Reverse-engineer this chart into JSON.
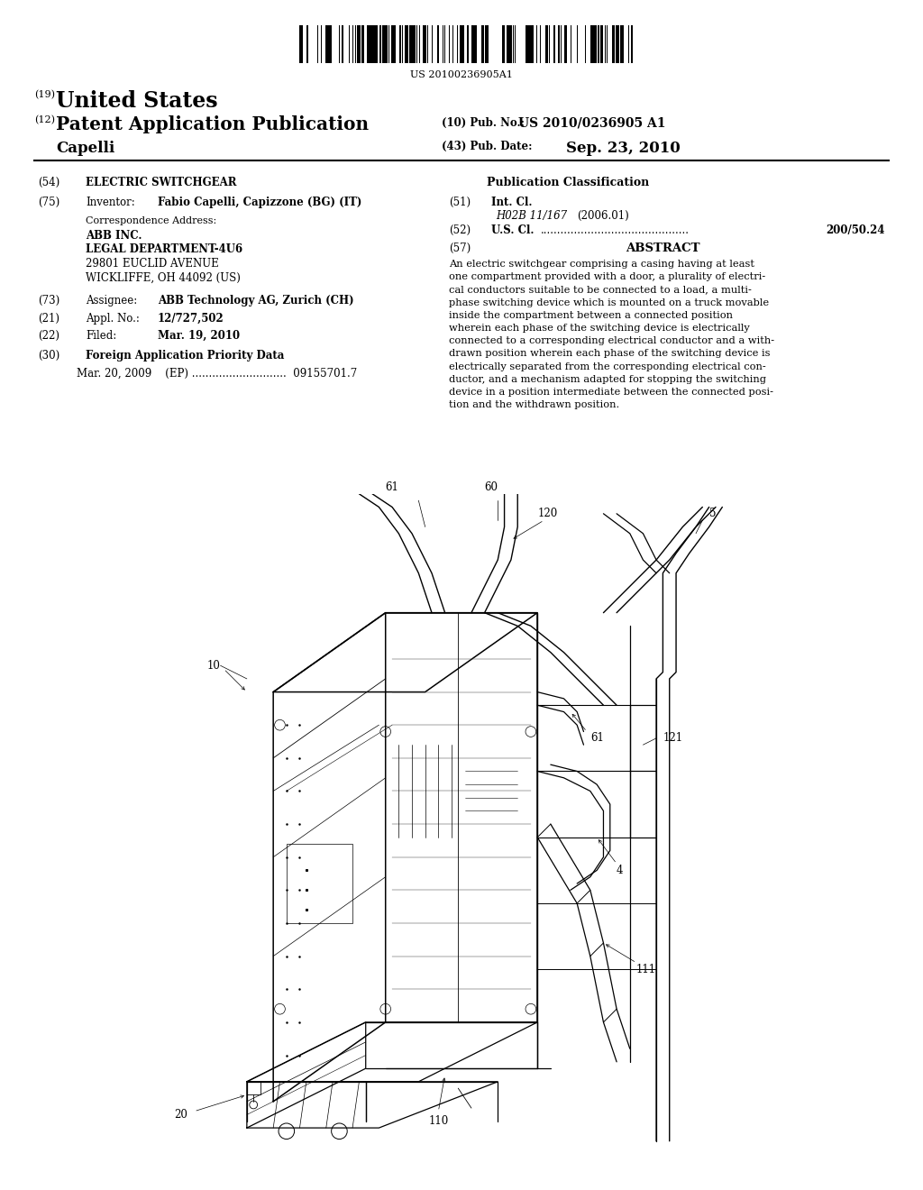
{
  "bg_color": "#ffffff",
  "barcode_text": "US 20100236905A1",
  "title_19_prefix": "(19)",
  "title_19_text": "United States",
  "title_12_prefix": "(12)",
  "title_12_text": "Patent Application Publication",
  "title_10_label": "(10) Pub. No.:",
  "title_10_value": "US 2010/0236905 A1",
  "title_43_label": "(43) Pub. Date:",
  "title_43_value": "Sep. 23, 2010",
  "inventor_name": "Capelli",
  "field54_label": "(54)  ",
  "field54_value": "ELECTRIC SWITCHGEAR",
  "field75_label": "(75)",
  "field75_key": "Inventor:",
  "field75_value": "Fabio Capelli, Capizzone (BG) (IT)",
  "corr_addr_label": "Correspondence Address:",
  "corr_addr_lines": [
    "ABB INC.",
    "LEGAL DEPARTMENT-4U6",
    "29801 EUCLID AVENUE",
    "WICKLIFFE, OH 44092 (US)"
  ],
  "field73_label": "(73)",
  "field73_key": "Assignee:",
  "field73_value": "ABB Technology AG, Zurich (CH)",
  "field21_label": "(21)",
  "field21_key": "Appl. No.:",
  "field21_value": "12/727,502",
  "field22_label": "(22)",
  "field22_key": "Filed:",
  "field22_value": "Mar. 19, 2010",
  "field30_label": "(30)",
  "field30_value": "Foreign Application Priority Data",
  "foreign_data": "Mar. 20, 2009    (EP) ............................  09155701.7",
  "pub_class_header": "Publication Classification",
  "field51_label": "(51)",
  "field51_key": "Int. Cl.",
  "field51_class": "H02B 11/167",
  "field51_year": "(2006.01)",
  "field52_label": "(52)",
  "field52_key": "U.S. Cl.",
  "field52_dots": "............................................",
  "field52_value": "200/50.24",
  "field57_label": "(57)",
  "field57_key": "ABSTRACT",
  "abstract_lines": [
    "An electric switchgear comprising a casing having at least",
    "one compartment provided with a door, a plurality of electri-",
    "cal conductors suitable to be connected to a load, a multi-",
    "phase switching device which is mounted on a truck movable",
    "inside the compartment between a connected position",
    "wherein each phase of the switching device is electrically",
    "connected to a corresponding electrical conductor and a with-",
    "drawn position wherein each phase of the switching device is",
    "electrically separated from the corresponding electrical con-",
    "ductor, and a mechanism adapted for stopping the switching",
    "device in a position intermediate between the connected posi-",
    "tion and the withdrawn position."
  ]
}
